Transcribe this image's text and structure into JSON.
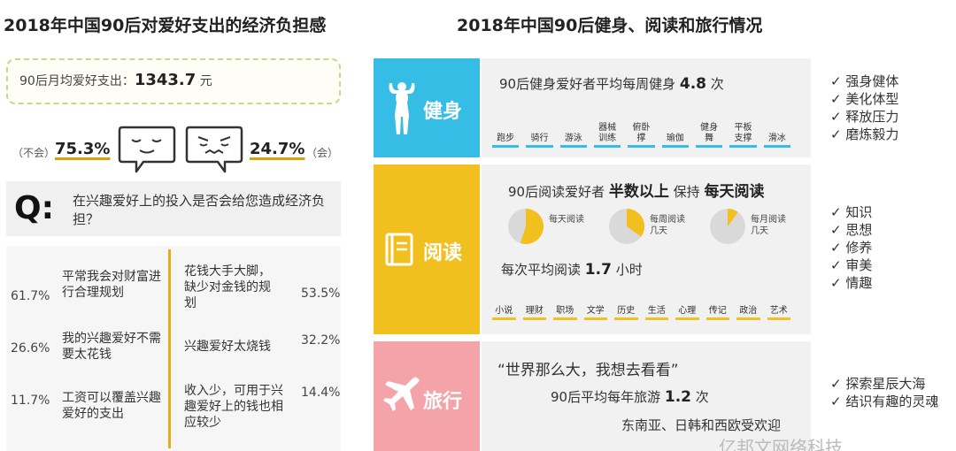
{
  "left": {
    "title": "2018年中国90后对爱好支出的经济负担感",
    "monthly_spend_label": "90后月均爱好支出：",
    "monthly_spend_value": "1343.7",
    "monthly_spend_unit": "元",
    "no_label": "（不会）",
    "no_pct": "75.3%",
    "yes_pct": "24.7%",
    "yes_label": "（会）",
    "question_mark": "Q:",
    "question": "在兴趣爱好上的投入是否会给您造成经济负担？",
    "reasons_no": [
      {
        "pct": "61.7%",
        "text": "平常我会对财富进行合理规划"
      },
      {
        "pct": "26.6%",
        "text": "我的兴趣爱好不需要太花钱"
      },
      {
        "pct": "11.7%",
        "text": "工资可以覆盖兴趣爱好的支出"
      }
    ],
    "reasons_yes": [
      {
        "pct": "53.5%",
        "text": "花钱大手大脚，缺少对金钱的规划"
      },
      {
        "pct": "32.2%",
        "text": "兴趣爱好太烧钱"
      },
      {
        "pct": "14.4%",
        "text": "收入少，可用于兴趣爱好上的钱也相应较少"
      }
    ]
  },
  "right": {
    "title": "2018年中国90后健身、阅读和旅行情况",
    "fitness": {
      "label": "健身",
      "headline_pre": "90后健身爱好者平均每周健身",
      "headline_value": "4.8",
      "headline_unit": "次",
      "tags": [
        "跑步",
        "骑行",
        "游泳",
        "器械训练",
        "俯卧撑",
        "瑜伽",
        "健身舞",
        "平板支撑",
        "滑冰"
      ],
      "benefits": [
        "强身健体",
        "美化体型",
        "释放压力",
        "磨炼毅力"
      ]
    },
    "reading": {
      "label": "阅读",
      "headline_pre": "90后阅读爱好者",
      "headline_bold1": "半数以上",
      "headline_mid": "保持",
      "headline_bold2": "每天阅读",
      "pies": [
        {
          "label": "每天阅读",
          "fraction": 0.55
        },
        {
          "label": "每周阅读几天",
          "fraction": 0.35
        },
        {
          "label": "每月阅读几天",
          "fraction": 0.1
        }
      ],
      "per_time_pre": "每次平均阅读",
      "per_time_value": "1.7",
      "per_time_unit": "小时",
      "tags": [
        "小说",
        "理财",
        "职场",
        "文学",
        "历史",
        "生活",
        "心理",
        "传记",
        "政治",
        "艺术"
      ],
      "benefits": [
        "知识",
        "思想",
        "修养",
        "审美",
        "情趣"
      ]
    },
    "travel": {
      "label": "旅行",
      "quote": "“世界那么大，我想去看看”",
      "headline_pre": "90后平均每年旅游",
      "headline_value": "1.2",
      "headline_unit": "次",
      "destinations": "东南亚、日韩和西欧受欢迎",
      "benefits": [
        "探索星辰大海",
        "结识有趣的灵魂"
      ]
    },
    "watermark": "亿邦文网络科技"
  },
  "colors": {
    "fitness": "#36bde6",
    "reading": "#f2c01e",
    "travel": "#f4a3a8",
    "accent": "#d4a20a"
  }
}
